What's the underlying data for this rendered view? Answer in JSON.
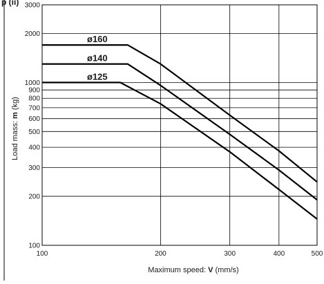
{
  "header_fragment": "p (ii)",
  "chart_data": {
    "type": "line",
    "x_scale": "log",
    "y_scale": "log",
    "xlim": [
      100,
      500
    ],
    "ylim": [
      100,
      3000
    ],
    "grid": true,
    "x_ticks": [
      100,
      200,
      300,
      400,
      500
    ],
    "x_tick_labels": [
      "100",
      "200",
      "300",
      "400",
      "500"
    ],
    "y_ticks": [
      100,
      200,
      300,
      400,
      500,
      600,
      700,
      800,
      900,
      1000,
      2000,
      3000
    ],
    "y_tick_labels": [
      "100",
      "200",
      "300",
      "400",
      "500",
      "600",
      "700",
      "800",
      "900",
      "1000",
      "2000",
      "3000"
    ],
    "xlabel": {
      "text": "Maximum speed: ",
      "symbol": "V",
      "unit": " (mm/s)"
    },
    "ylabel": {
      "text": "Load mass: ",
      "symbol": "m",
      "unit": " (kg)"
    },
    "series": [
      {
        "name": "ø160",
        "points": [
          [
            100,
            1700
          ],
          [
            165,
            1700
          ],
          [
            200,
            1300
          ],
          [
            300,
            630
          ],
          [
            400,
            380
          ],
          [
            500,
            245
          ]
        ]
      },
      {
        "name": "ø140",
        "points": [
          [
            100,
            1300
          ],
          [
            165,
            1300
          ],
          [
            200,
            960
          ],
          [
            300,
            480
          ],
          [
            400,
            290
          ],
          [
            500,
            190
          ]
        ]
      },
      {
        "name": "ø125",
        "points": [
          [
            100,
            1000
          ],
          [
            158,
            1000
          ],
          [
            200,
            740
          ],
          [
            300,
            375
          ],
          [
            400,
            220
          ],
          [
            500,
            145
          ]
        ]
      }
    ]
  }
}
